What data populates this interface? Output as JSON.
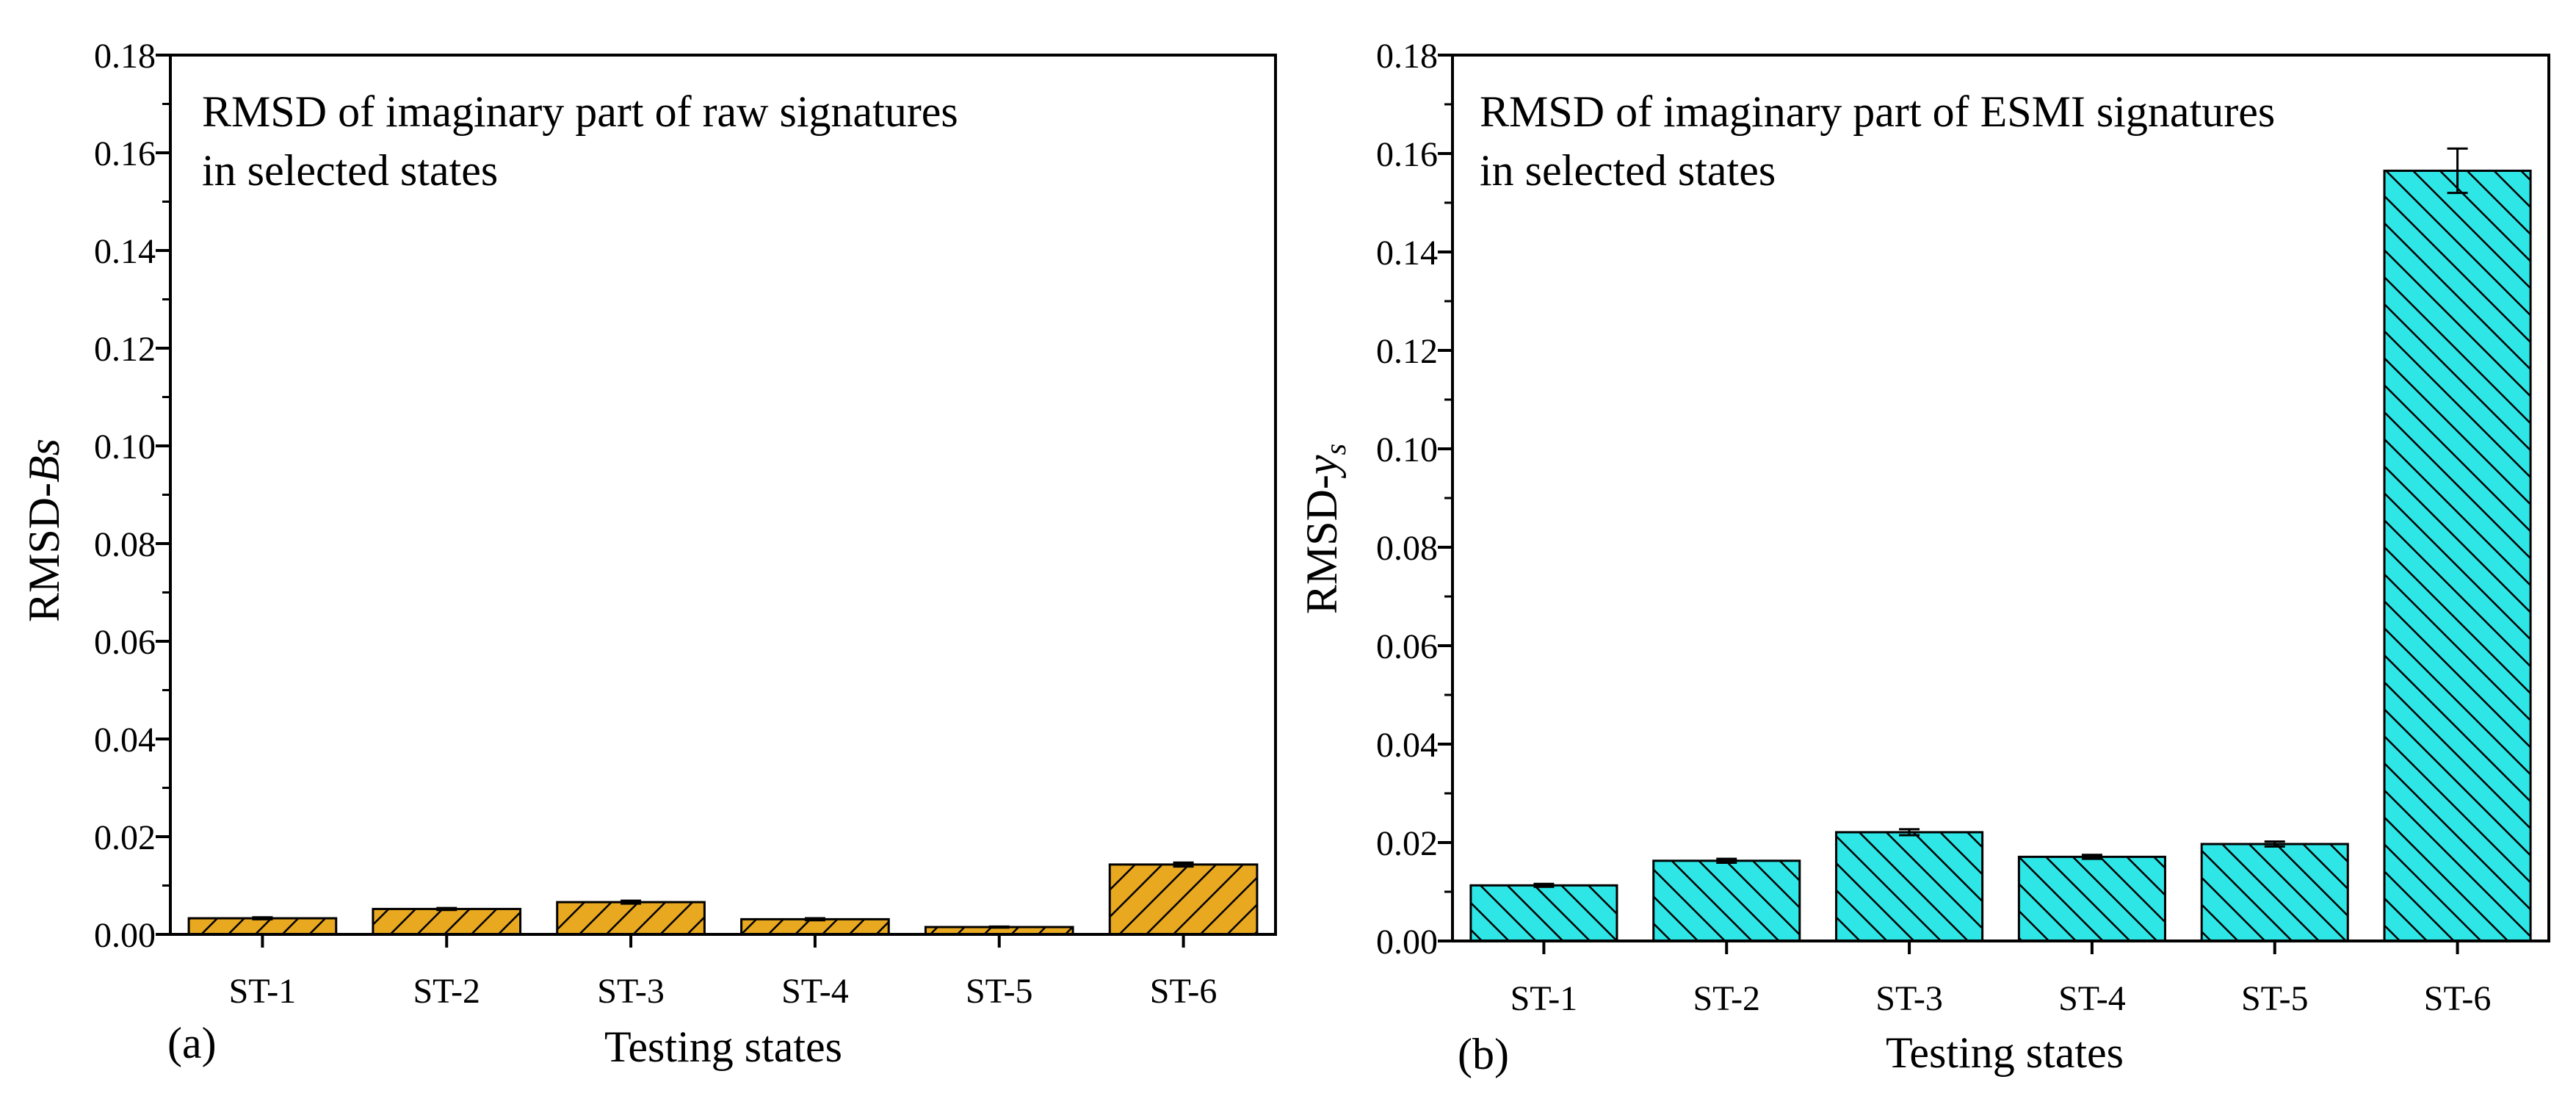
{
  "chart_data": [
    {
      "type": "bar",
      "panel_label": "(a)",
      "title_lines": [
        "RMSD of imaginary part of raw signatures",
        "in selected states"
      ],
      "categories": [
        "ST-1",
        "ST-2",
        "ST-3",
        "ST-4",
        "ST-5",
        "ST-6"
      ],
      "values": [
        0.0033,
        0.0052,
        0.0066,
        0.0031,
        0.0015,
        0.0143
      ],
      "errors": [
        0.0002,
        0.0002,
        0.0003,
        0.0002,
        0.0001,
        0.0004
      ],
      "xlabel": "Testing states",
      "ylabel_main": "RMSD-",
      "ylabel_italic": "Bs",
      "ylabel_sub": "",
      "ylim": [
        0,
        0.18
      ],
      "yticks": [
        "0.00",
        "0.02",
        "0.04",
        "0.06",
        "0.08",
        "0.10",
        "0.12",
        "0.14",
        "0.16",
        "0.18"
      ],
      "bar_color": "#E8A820",
      "hatch": "forward"
    },
    {
      "type": "bar",
      "panel_label": "(b)",
      "title_lines": [
        "RMSD of imaginary part of ESMI signatures",
        "in selected states"
      ],
      "categories": [
        "ST-1",
        "ST-2",
        "ST-3",
        "ST-4",
        "ST-5",
        "ST-6"
      ],
      "values": [
        0.0113,
        0.0163,
        0.0221,
        0.0171,
        0.0197,
        0.1565
      ],
      "errors": [
        0.0003,
        0.0004,
        0.0006,
        0.0004,
        0.0005,
        0.0045
      ],
      "xlabel": "Testing states",
      "ylabel_main": "RMSD-",
      "ylabel_italic": "y",
      "ylabel_sub": "s",
      "ylim": [
        0,
        0.18
      ],
      "yticks": [
        "0.00",
        "0.02",
        "0.04",
        "0.06",
        "0.08",
        "0.10",
        "0.12",
        "0.14",
        "0.16",
        "0.18"
      ],
      "bar_color": "#2EE6E6",
      "hatch": "back"
    }
  ]
}
